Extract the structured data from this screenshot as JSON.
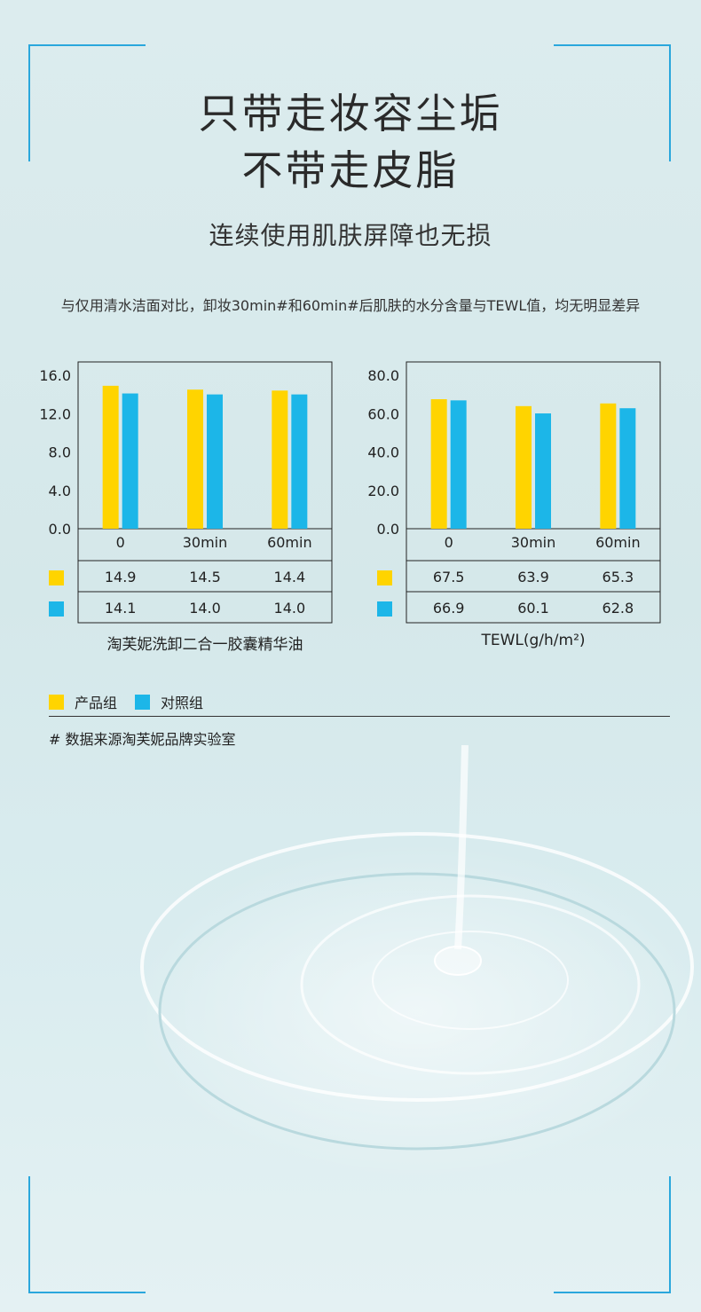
{
  "header": {
    "title_line1": "只带走妆容尘垢",
    "title_line2": "不带走皮脂",
    "subtitle": "连续使用肌肤屏障也无损",
    "description": "与仅用清水洁面对比，卸妆30min#和60min#后肌肤的水分含量与TEWL值，均无明显差异"
  },
  "colors": {
    "product": "#ffd400",
    "control": "#1cb6e8",
    "corner": "#2aa7dc"
  },
  "legend": {
    "product": "产品组",
    "control": "对照组"
  },
  "footnote": "# 数据来源淘芙妮品牌实验室",
  "chart_data": [
    {
      "type": "bar",
      "title": "淘芙妮洗卸二合一胶囊精华油",
      "categories": [
        "0",
        "30min",
        "60min"
      ],
      "ylim": [
        0,
        16
      ],
      "yticks": [
        "0.0",
        "4.0",
        "8.0",
        "12.0",
        "16.0"
      ],
      "series": [
        {
          "name": "产品组",
          "values": [
            14.9,
            14.5,
            14.4
          ],
          "labels": [
            "14.9",
            "14.5",
            "14.4"
          ]
        },
        {
          "name": "对照组",
          "values": [
            14.1,
            14.0,
            14.0
          ],
          "labels": [
            "14.1",
            "14.0",
            "14.0"
          ]
        }
      ]
    },
    {
      "type": "bar",
      "title": "TEWL(g/h/m²)",
      "categories": [
        "0",
        "30min",
        "60min"
      ],
      "ylim": [
        0,
        80
      ],
      "yticks": [
        "0.0",
        "20.0",
        "40.0",
        "60.0",
        "80.0"
      ],
      "series": [
        {
          "name": "产品组",
          "values": [
            67.5,
            63.9,
            65.3
          ],
          "labels": [
            "67.5",
            "63.9",
            "65.3"
          ]
        },
        {
          "name": "对照组",
          "values": [
            66.9,
            60.1,
            62.8
          ],
          "labels": [
            "66.9",
            "60.1",
            "62.8"
          ]
        }
      ]
    }
  ]
}
